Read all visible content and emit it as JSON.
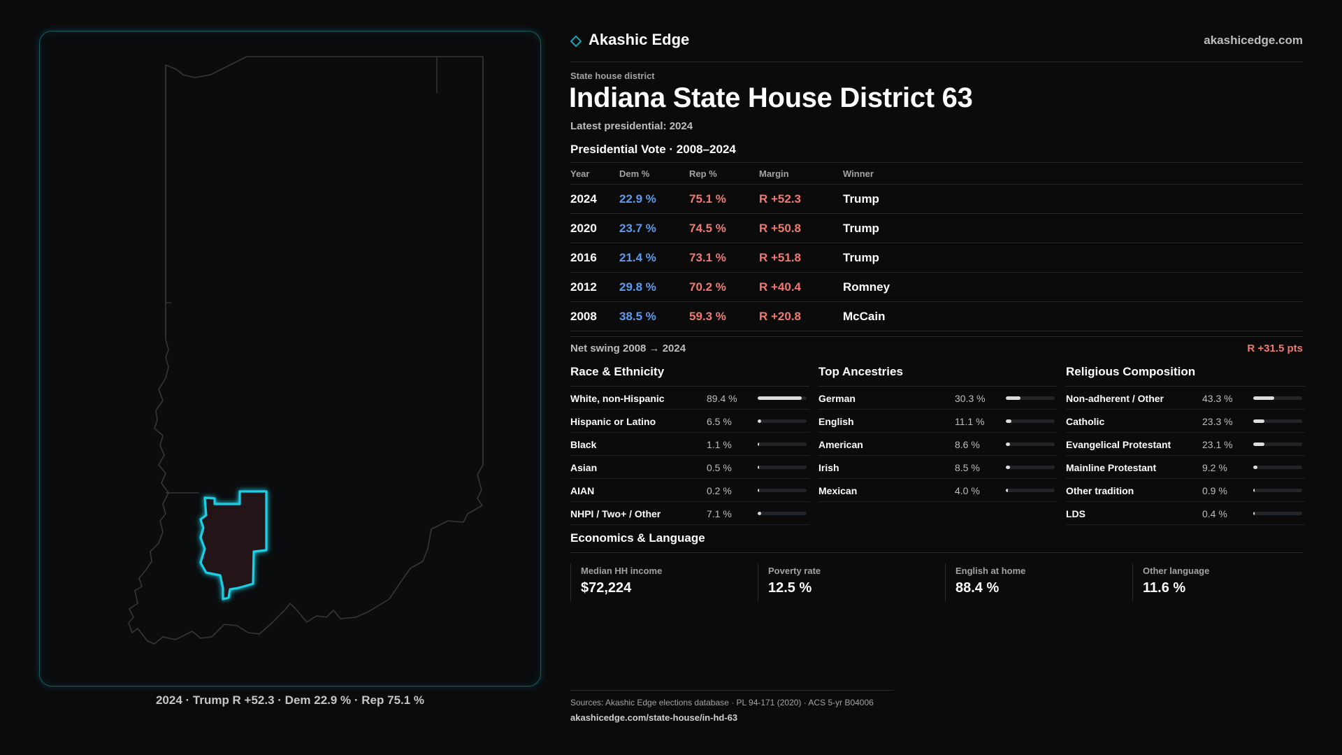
{
  "colors": {
    "dem": "#5b9cf0",
    "rep": "#f07a6f",
    "accent": "#1ad0e6",
    "district_fill": "#231418"
  },
  "map": {
    "caption": "2024 · Trump R +52.3 · Dem 22.9 % · Rep 75.1 %"
  },
  "header": {
    "brand_icon": "diamond-outline-icon",
    "brand": "Akashic Edge",
    "site": "akashicedge.com"
  },
  "district": {
    "type": "State house district",
    "title": "Indiana State House District 63",
    "latest": "Latest presidential: 2024"
  },
  "vote": {
    "heading": "Presidential Vote · 2008–2024",
    "columns": [
      "Year",
      "Dem %",
      "Rep %",
      "Margin",
      "Winner"
    ],
    "rows": [
      {
        "year": "2024",
        "dem": "22.9 %",
        "rep": "75.1 %",
        "margin": "R +52.3",
        "winner": "Trump"
      },
      {
        "year": "2020",
        "dem": "23.7 %",
        "rep": "74.5 %",
        "margin": "R +50.8",
        "winner": "Trump"
      },
      {
        "year": "2016",
        "dem": "21.4 %",
        "rep": "73.1 %",
        "margin": "R +51.8",
        "winner": "Trump"
      },
      {
        "year": "2012",
        "dem": "29.8 %",
        "rep": "70.2 %",
        "margin": "R +40.4",
        "winner": "Romney"
      },
      {
        "year": "2008",
        "dem": "38.5 %",
        "rep": "59.3 %",
        "margin": "R +20.8",
        "winner": "McCain"
      }
    ],
    "swing_label": "Net swing 2008 → 2024",
    "swing_value": "R +31.5 pts"
  },
  "race": {
    "heading": "Race & Ethnicity",
    "items": [
      {
        "label": "White, non-Hispanic",
        "value": "89.4 %",
        "pct": 89.4
      },
      {
        "label": "Hispanic or Latino",
        "value": "6.5 %",
        "pct": 6.5
      },
      {
        "label": "Black",
        "value": "1.1 %",
        "pct": 1.1
      },
      {
        "label": "Asian",
        "value": "0.5 %",
        "pct": 0.5
      },
      {
        "label": "AIAN",
        "value": "0.2 %",
        "pct": 0.2
      },
      {
        "label": "NHPI / Two+ / Other",
        "value": "7.1 %",
        "pct": 7.1
      }
    ]
  },
  "ancestry": {
    "heading": "Top Ancestries",
    "items": [
      {
        "label": "German",
        "value": "30.3 %",
        "pct": 30.3
      },
      {
        "label": "English",
        "value": "11.1 %",
        "pct": 11.1
      },
      {
        "label": "American",
        "value": "8.6 %",
        "pct": 8.6
      },
      {
        "label": "Irish",
        "value": "8.5 %",
        "pct": 8.5
      },
      {
        "label": "Mexican",
        "value": "4.0 %",
        "pct": 4.0
      }
    ]
  },
  "religion": {
    "heading": "Religious Composition",
    "items": [
      {
        "label": "Non-adherent / Other",
        "value": "43.3 %",
        "pct": 43.3
      },
      {
        "label": "Catholic",
        "value": "23.3 %",
        "pct": 23.3
      },
      {
        "label": "Evangelical Protestant",
        "value": "23.1 %",
        "pct": 23.1
      },
      {
        "label": "Mainline Protestant",
        "value": "9.2 %",
        "pct": 9.2
      },
      {
        "label": "Other tradition",
        "value": "0.9 %",
        "pct": 0.9
      },
      {
        "label": "LDS",
        "value": "0.4 %",
        "pct": 0.4
      }
    ]
  },
  "economics": {
    "heading": "Economics & Language",
    "items": [
      {
        "label": "Median HH income",
        "value": "$72,224"
      },
      {
        "label": "Poverty rate",
        "value": "12.5 %"
      },
      {
        "label": "English at home",
        "value": "88.4 %"
      },
      {
        "label": "Other language",
        "value": "11.6 %"
      }
    ]
  },
  "footer": {
    "sources": "Sources: Akashic Edge elections database · PL 94-171 (2020) · ACS 5-yr B04006",
    "url": "akashicedge.com/state-house/in-hd-63"
  }
}
